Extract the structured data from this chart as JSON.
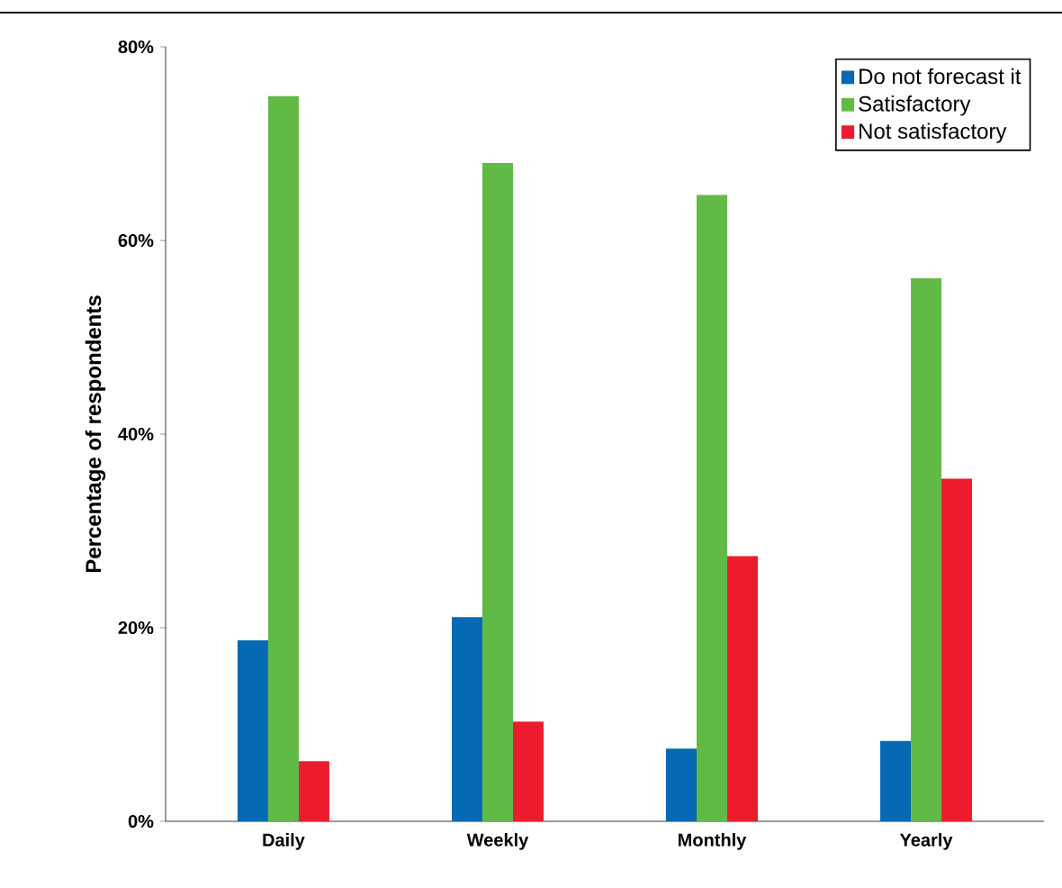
{
  "chart_data": {
    "type": "bar",
    "ylabel": "Percentage of respondents",
    "categories": [
      "Daily",
      "Weekly",
      "Monthly",
      "Yearly"
    ],
    "series": [
      {
        "name": "Do not forecast it",
        "color": "#0569b3",
        "values": [
          18.7,
          21.1,
          7.5,
          8.3
        ]
      },
      {
        "name": "Satisfactory",
        "color": "#62ba46",
        "values": [
          74.9,
          68.0,
          64.7,
          56.1
        ]
      },
      {
        "name": "Not satisfactory",
        "color": "#ec1c2e",
        "values": [
          6.2,
          10.3,
          27.4,
          35.4
        ]
      }
    ],
    "ylim": [
      0,
      80
    ],
    "yticks": [
      {
        "value": 0,
        "label": "0%"
      },
      {
        "value": 20,
        "label": "20%"
      },
      {
        "value": 40,
        "label": "40%"
      },
      {
        "value": 60,
        "label": "60%"
      },
      {
        "value": 80,
        "label": "80%"
      }
    ],
    "grid": false,
    "legend": "top right"
  }
}
